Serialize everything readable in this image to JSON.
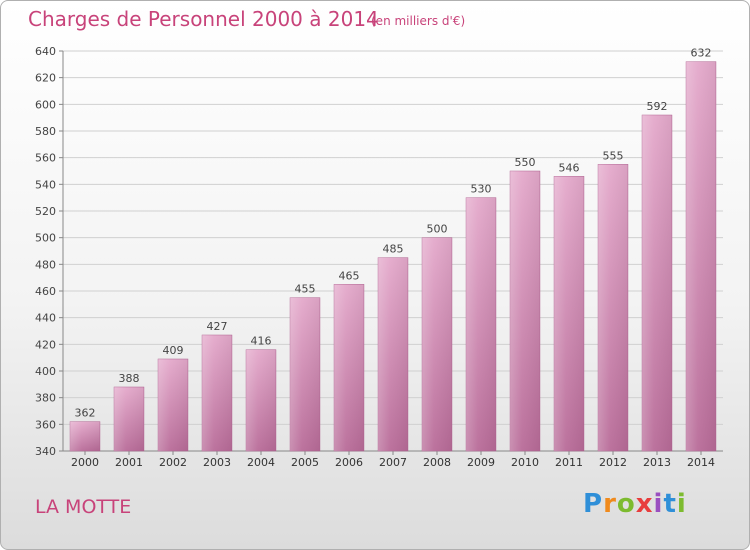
{
  "header": {
    "title": "Charges de Personnel 2000 à 2014",
    "subtitle": "(en milliers d'€)"
  },
  "footer": {
    "town": "LA MOTTE",
    "brand": "Proxiti"
  },
  "colors": {
    "accent": "#c8437a",
    "bar_top": "#e4a9cb",
    "bar_bottom": "#b86b98",
    "logo_letters": [
      "#2f8fd8",
      "#f08a1c",
      "#7dbb2f",
      "#e83d3d",
      "#9a4fc0",
      "#2f8fd8",
      "#7dbb2f"
    ]
  },
  "chart_data": {
    "type": "bar",
    "categories": [
      "2000",
      "2001",
      "2002",
      "2003",
      "2004",
      "2005",
      "2006",
      "2007",
      "2008",
      "2009",
      "2010",
      "2011",
      "2012",
      "2013",
      "2014"
    ],
    "values": [
      362,
      388,
      409,
      427,
      416,
      455,
      465,
      485,
      500,
      530,
      550,
      546,
      555,
      592,
      632
    ],
    "ylim": [
      340,
      640
    ],
    "yticks": [
      340,
      360,
      380,
      400,
      420,
      440,
      460,
      480,
      500,
      520,
      540,
      560,
      580,
      600,
      620,
      640
    ],
    "grid": true,
    "xlabel": "",
    "ylabel": ""
  }
}
